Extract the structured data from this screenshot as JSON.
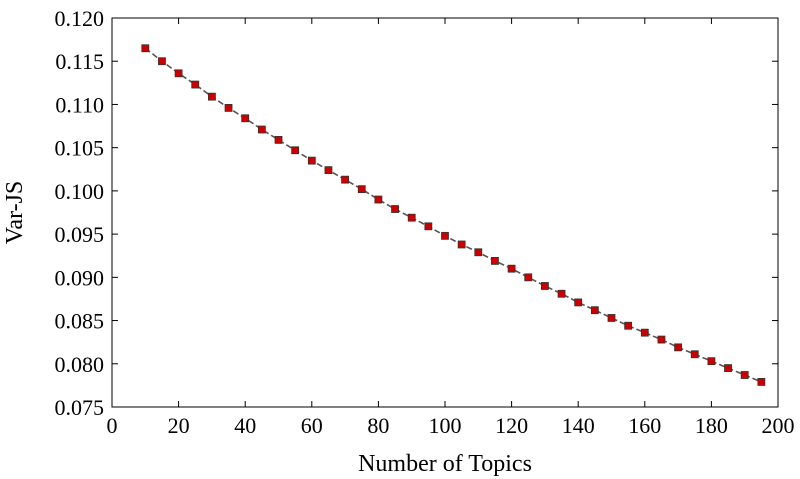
{
  "chart_data": {
    "type": "line",
    "title": "",
    "xlabel": "Number of Topics",
    "ylabel": "Var-JS",
    "xlim": [
      0,
      200
    ],
    "ylim": [
      0.075,
      0.12
    ],
    "xticks": [
      "0",
      "20",
      "40",
      "60",
      "80",
      "100",
      "120",
      "140",
      "160",
      "180",
      "200"
    ],
    "yticks": [
      "0.075",
      "0.080",
      "0.085",
      "0.090",
      "0.095",
      "0.100",
      "0.105",
      "0.110",
      "0.115",
      "0.120"
    ],
    "grid": false,
    "legend": "none",
    "series": [
      {
        "line_color": "#555555",
        "line_style": "dashed",
        "marker": "square",
        "marker_color": "#cc0000",
        "x": [
          10,
          15,
          20,
          25,
          30,
          35,
          40,
          45,
          50,
          55,
          60,
          65,
          70,
          75,
          80,
          85,
          90,
          95,
          100,
          105,
          110,
          115,
          120,
          125,
          130,
          135,
          140,
          145,
          150,
          155,
          160,
          165,
          170,
          175,
          180,
          185,
          190,
          195
        ],
        "y": [
          0.1165,
          0.115,
          0.1136,
          0.1123,
          0.1109,
          0.1096,
          0.1084,
          0.1071,
          0.1059,
          0.1047,
          0.1035,
          0.1024,
          0.1013,
          0.1002,
          0.099,
          0.0979,
          0.0969,
          0.0959,
          0.0948,
          0.0938,
          0.0929,
          0.0919,
          0.091,
          0.09,
          0.089,
          0.0881,
          0.0871,
          0.0862,
          0.0853,
          0.0844,
          0.0836,
          0.0828,
          0.0819,
          0.0811,
          0.0803,
          0.0795,
          0.0787,
          0.0779
        ]
      }
    ]
  }
}
